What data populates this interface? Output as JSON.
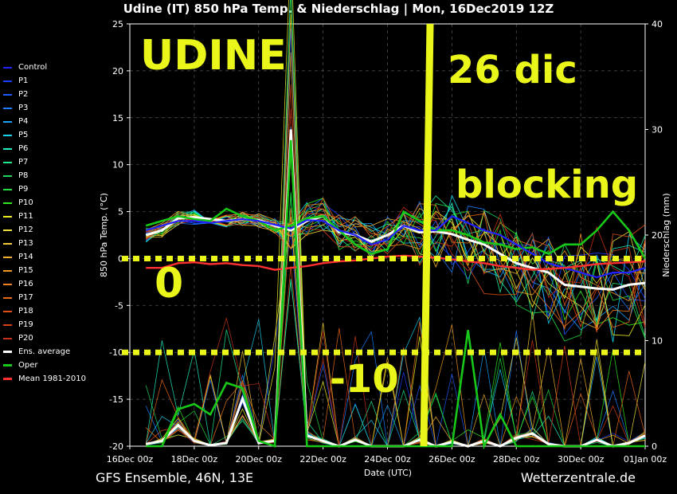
{
  "title": "Udine  (IT)  850 hPa Temp. & Niederschlag | Mon, 16Dec2019 12Z",
  "footer_left": "GFS Ensemble, 46N, 13E",
  "footer_right": "Wetterzentrale.de",
  "annotations": {
    "city": "UDINE",
    "date": "26 dic",
    "blocking": "blocking",
    "zero": "0",
    "minus_ten": "-10"
  },
  "colors": {
    "annotation": "#eaf51a",
    "mean": "#ff3030",
    "average": "#ffffff",
    "oper": "#18c818",
    "control": "#2222ff"
  },
  "chart_data": {
    "type": "line",
    "xlabel": "Date (UTC)",
    "ylabel": "850 hPa Temp. (°C)",
    "y2label": "Niederschlag (mm)",
    "ylim": [
      -20,
      25
    ],
    "y2lim": [
      0,
      40
    ],
    "x_ticks": [
      "16Dec 00z",
      "18Dec 00z",
      "20Dec 00z",
      "22Dec 00z",
      "24Dec 00z",
      "26Dec 00z",
      "28Dec 00z",
      "30Dec 00z",
      "01Jan 00z"
    ],
    "y_ticks": [
      -20,
      -15,
      -10,
      -5,
      0,
      5,
      10,
      15,
      20,
      25
    ],
    "y2_ticks": [
      0,
      10,
      20,
      30,
      40
    ],
    "grid": true,
    "legend_position": "left-outside",
    "legend": [
      "Control",
      "P1",
      "P2",
      "P3",
      "P4",
      "P5",
      "P6",
      "P7",
      "P8",
      "P9",
      "P10",
      "P11",
      "P12",
      "P13",
      "P14",
      "P15",
      "P16",
      "P17",
      "P18",
      "P19",
      "P20",
      "Ens. average",
      "Oper",
      "Mean 1981-2010"
    ],
    "legend_colors": [
      "#2222ff",
      "#1a3cff",
      "#1a5cff",
      "#1a7cff",
      "#1aa0ff",
      "#1ad0f0",
      "#20f0c0",
      "#20e890",
      "#20d860",
      "#20e040",
      "#30e820",
      "#f0f020",
      "#f0e040",
      "#f0c830",
      "#f0b030",
      "#f09a20",
      "#f08020",
      "#e86818",
      "#e05018",
      "#d84018",
      "#c83018",
      "#ffffff",
      "#18c818",
      "#ff3030"
    ],
    "reference_lines": [
      0,
      -10
    ],
    "marker_date": "26Dec",
    "series": [
      {
        "name": "Ens. average",
        "x": [
          0.5,
          1,
          1.5,
          2,
          2.5,
          3,
          3.5,
          4,
          4.5,
          5,
          5.5,
          6,
          6.5,
          7,
          7.5,
          8,
          8.5,
          9,
          9.5,
          10,
          10.5,
          11,
          11.5,
          12,
          12.5,
          13,
          13.5,
          14,
          14.5,
          15,
          15.5,
          16
        ],
        "values": [
          2.5,
          3,
          4.3,
          4.4,
          4.2,
          4.0,
          4.2,
          4.1,
          3.5,
          3.0,
          4.0,
          4.5,
          2.8,
          2.5,
          1.8,
          2.5,
          3.5,
          2.8,
          2.9,
          2.6,
          2.0,
          1.5,
          0.5,
          -0.5,
          -1.0,
          -1.5,
          -2.8,
          -3.0,
          -3.2,
          -3.3,
          -2.8,
          -2.6
        ]
      },
      {
        "name": "Oper",
        "x": [
          0.5,
          1,
          1.5,
          2,
          2.5,
          3,
          3.5,
          4,
          4.5,
          5,
          5.5,
          6,
          6.5,
          7,
          7.5,
          8,
          8.5,
          9,
          9.5,
          10,
          10.5,
          11,
          11.5,
          12,
          12.5,
          13,
          13.5,
          14,
          14.5,
          15,
          15.5,
          16
        ],
        "values": [
          3.5,
          4.0,
          4.5,
          4.2,
          4.0,
          5.3,
          4.5,
          4.0,
          3.0,
          3.5,
          4.3,
          4.5,
          3.0,
          1.5,
          0.5,
          1.0,
          5.0,
          4.0,
          3.0,
          3.0,
          2.5,
          1.7,
          1.5,
          1.0,
          1.2,
          0.5,
          1.5,
          1.5,
          3.0,
          5.0,
          3.0,
          0.0
        ]
      },
      {
        "name": "Control",
        "x": [
          0.5,
          1,
          1.5,
          2,
          2.5,
          3,
          3.5,
          4,
          4.5,
          5,
          5.5,
          6,
          6.5,
          7,
          7.5,
          8,
          8.5,
          9,
          9.5,
          10,
          10.5,
          11,
          11.5,
          12,
          12.5,
          13,
          13.5,
          14,
          14.5,
          15,
          15.5,
          16
        ],
        "values": [
          3.0,
          3.5,
          4.0,
          4.0,
          3.8,
          4.0,
          4.2,
          4.0,
          3.6,
          3.2,
          4.1,
          4.0,
          3.0,
          2.5,
          1.5,
          2.0,
          3.5,
          3.0,
          3.0,
          4.5,
          3.8,
          3.0,
          2.5,
          1.5,
          0.5,
          -0.5,
          -1.0,
          -1.5,
          -2.0,
          -1.5,
          -1.5,
          -1.0
        ]
      },
      {
        "name": "Mean 1981-2010",
        "x": [
          0.5,
          1,
          1.5,
          2,
          2.5,
          3,
          3.5,
          4,
          4.5,
          5,
          5.5,
          6,
          6.5,
          7,
          7.5,
          8,
          8.5,
          9,
          9.5,
          10,
          10.5,
          11,
          11.5,
          12,
          12.5,
          13,
          13.5,
          14,
          14.5,
          15,
          15.5,
          16
        ],
        "values": [
          -1.0,
          -1.0,
          -0.5,
          -0.4,
          -0.6,
          -0.5,
          -0.7,
          -0.8,
          -1.2,
          -1.0,
          -0.8,
          -0.5,
          -0.3,
          -0.2,
          0.0,
          0.2,
          0.3,
          0.2,
          0.1,
          -0.1,
          -0.3,
          -0.5,
          -0.8,
          -1.0,
          -1.2,
          -1.1,
          -1.0,
          -0.8,
          -0.6,
          -0.5,
          -0.4,
          -0.3
        ]
      }
    ],
    "precip_series": [
      {
        "name": "Ens. average",
        "x": [
          0.5,
          1,
          1.5,
          2,
          2.5,
          3,
          3.5,
          4,
          4.5,
          5,
          5.5,
          6,
          6.5,
          7,
          7.5,
          8,
          8.5,
          9,
          9.5,
          10,
          10.5,
          11,
          11.5,
          12,
          12.5,
          13,
          13.5,
          14,
          14.5,
          15,
          15.5,
          16
        ],
        "values": [
          0.2,
          0.5,
          2.0,
          0.5,
          0.1,
          0.3,
          4.5,
          0.3,
          0.5,
          30.0,
          1.0,
          0.5,
          0.0,
          0.6,
          0.0,
          0.0,
          0.0,
          0.6,
          0.0,
          0.4,
          0.0,
          0.5,
          0.0,
          0.8,
          1.2,
          0.2,
          0.0,
          0.0,
          0.6,
          0.0,
          0.3,
          1.0
        ]
      },
      {
        "name": "Oper",
        "x": [
          0.5,
          1,
          1.5,
          2,
          2.5,
          3,
          3.5,
          4,
          4.5,
          5,
          5.5,
          6,
          6.5,
          7,
          7.5,
          8,
          8.5,
          9,
          9.5,
          10,
          10.5,
          11,
          11.5,
          12,
          12.5,
          13,
          13.5,
          14,
          14.5,
          15,
          15.5,
          16
        ],
        "values": [
          0.0,
          0.0,
          3.5,
          4.0,
          3.0,
          6.0,
          5.5,
          0.5,
          0.0,
          29.0,
          0.0,
          0.0,
          0.0,
          0.0,
          0.0,
          0.0,
          0.0,
          0.0,
          0.0,
          0.0,
          11.0,
          0.0,
          3.0,
          0.0,
          0.0,
          0.0,
          0.0,
          0.0,
          0.0,
          0.0,
          0.0,
          0.0
        ]
      }
    ]
  }
}
